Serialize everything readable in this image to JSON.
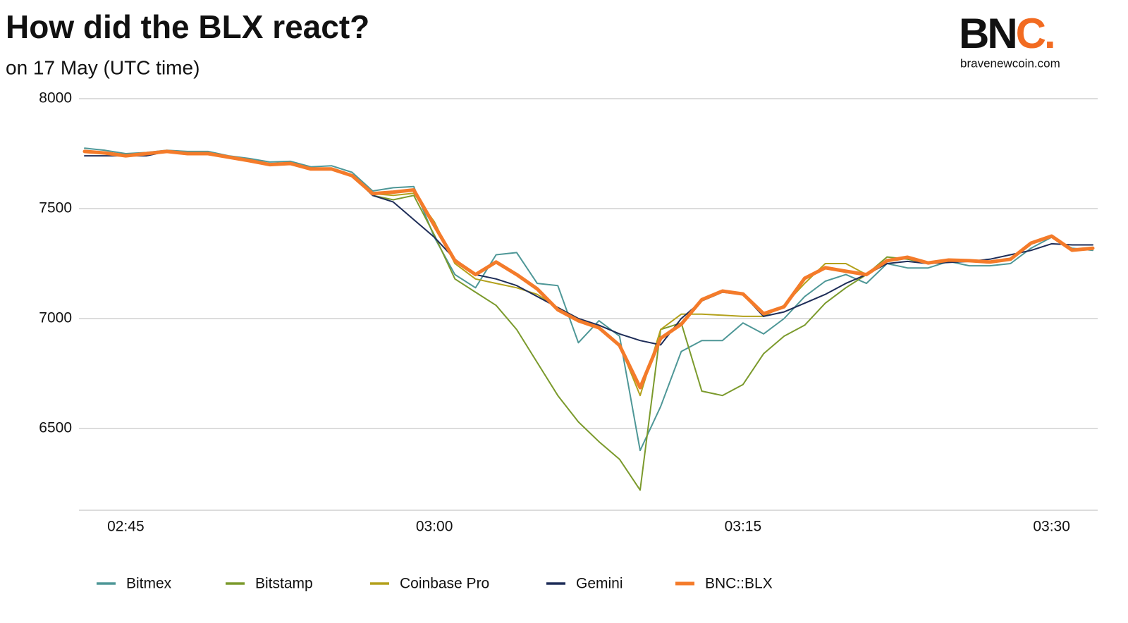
{
  "logo": {
    "main": "BN",
    "accent": "C.",
    "site": "bravenewcoin.com"
  },
  "chart_data": {
    "type": "line",
    "title": "How did the BLX react?",
    "subtitle": "on 17 May (UTC time)",
    "x": [
      "02:43",
      "02:44",
      "02:45",
      "02:46",
      "02:47",
      "02:48",
      "02:49",
      "02:50",
      "02:51",
      "02:52",
      "02:53",
      "02:54",
      "02:55",
      "02:56",
      "02:57",
      "02:58",
      "02:59",
      "03:00",
      "03:01",
      "03:02",
      "03:03",
      "03:04",
      "03:05",
      "03:06",
      "03:07",
      "03:08",
      "03:09",
      "03:10",
      "03:11",
      "03:12",
      "03:13",
      "03:14",
      "03:15",
      "03:16",
      "03:17",
      "03:18",
      "03:19",
      "03:20",
      "03:21",
      "03:22",
      "03:23",
      "03:24",
      "03:25",
      "03:26",
      "03:27",
      "03:28",
      "03:29",
      "03:30",
      "03:31",
      "03:32"
    ],
    "xlim": [
      "02:43",
      "03:32"
    ],
    "xticks": [
      "02:45",
      "03:00",
      "03:15",
      "03:30"
    ],
    "ylim": [
      6125,
      8000
    ],
    "yticks": [
      6500,
      7000,
      7500,
      8000
    ],
    "grid": true,
    "legend": "bottom",
    "series": [
      {
        "name": "Bitmex",
        "color": "#4e9797",
        "values": [
          7775,
          7765,
          7750,
          7755,
          7765,
          7760,
          7760,
          7740,
          7728,
          7712,
          7715,
          7690,
          7695,
          7665,
          7580,
          7595,
          7600,
          7370,
          7200,
          7140,
          7290,
          7300,
          7160,
          7150,
          6890,
          6990,
          6920,
          6400,
          6600,
          6850,
          6900,
          6900,
          6980,
          6930,
          7000,
          7100,
          7170,
          7200,
          7160,
          7250,
          7230,
          7230,
          7260,
          7240,
          7240,
          7250,
          7320,
          7370,
          7320,
          7310
        ]
      },
      {
        "name": "Bitstamp",
        "color": "#7b9a2c",
        "values": [
          7760,
          7753,
          7740,
          7750,
          7760,
          7750,
          7750,
          7734,
          7718,
          7700,
          7705,
          7680,
          7680,
          7650,
          7560,
          7540,
          7560,
          7380,
          7180,
          7120,
          7060,
          6950,
          6800,
          6650,
          6530,
          6440,
          6360,
          6220,
          6950,
          6980,
          6670,
          6650,
          6700,
          6840,
          6920,
          6970,
          7070,
          7140,
          7200,
          7280,
          7270,
          7250,
          7266,
          7263,
          7257,
          7270,
          7343,
          7375,
          7311,
          7320
        ]
      },
      {
        "name": "Coinbase Pro",
        "color": "#b3a11c",
        "values": [
          7760,
          7753,
          7740,
          7750,
          7760,
          7750,
          7750,
          7734,
          7718,
          7700,
          7705,
          7680,
          7680,
          7650,
          7568,
          7560,
          7570,
          7440,
          7250,
          7180,
          7160,
          7140,
          7110,
          7050,
          7000,
          6960,
          6880,
          6650,
          6950,
          7020,
          7020,
          7015,
          7010,
          7010,
          7060,
          7160,
          7250,
          7250,
          7200,
          7263,
          7279,
          7253,
          7266,
          7263,
          7257,
          7270,
          7343,
          7375,
          7311,
          7320
        ]
      },
      {
        "name": "Gemini",
        "color": "#1e2d58",
        "values": [
          7740,
          7740,
          7740,
          7740,
          7760,
          7750,
          7750,
          7734,
          7718,
          7700,
          7705,
          7680,
          7680,
          7650,
          7560,
          7530,
          7450,
          7370,
          7270,
          7200,
          7180,
          7150,
          7100,
          7050,
          7000,
          6970,
          6930,
          6900,
          6880,
          7000,
          7080,
          7120,
          7110,
          7010,
          7030,
          7070,
          7110,
          7160,
          7200,
          7250,
          7260,
          7250,
          7255,
          7260,
          7270,
          7290,
          7310,
          7340,
          7335,
          7335
        ]
      },
      {
        "name": "BNC::BLX",
        "color": "#f47b2a",
        "values": [
          7760,
          7753,
          7740,
          7750,
          7760,
          7750,
          7750,
          7734,
          7718,
          7700,
          7705,
          7680,
          7680,
          7650,
          7568,
          7575,
          7585,
          7423,
          7263,
          7200,
          7257,
          7200,
          7135,
          7040,
          6990,
          6958,
          6878,
          6686,
          6910,
          6974,
          7086,
          7125,
          7112,
          7022,
          7054,
          7183,
          7231,
          7215,
          7200,
          7263,
          7279,
          7253,
          7266,
          7263,
          7257,
          7270,
          7343,
          7375,
          7311,
          7320
        ]
      }
    ]
  }
}
